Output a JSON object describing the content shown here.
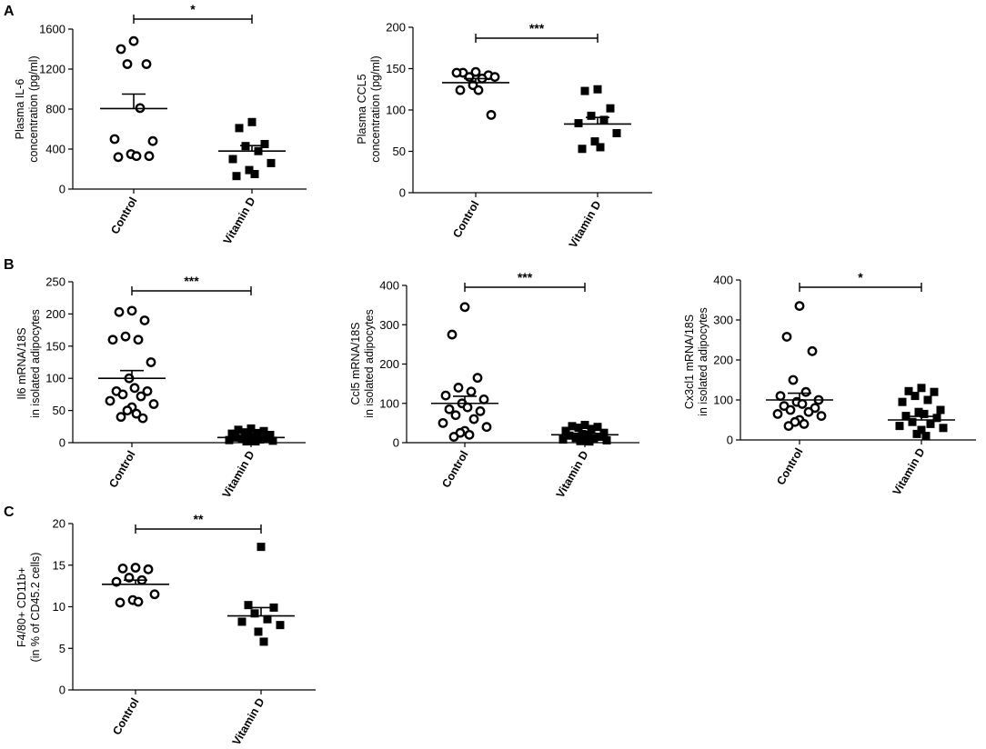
{
  "panel_labels": [
    "A",
    "B",
    "C"
  ],
  "chart_data": [
    {
      "type": "scatter",
      "panel": "A",
      "ylabel": [
        "Plasma IL-6",
        "concentration (pg/ml)"
      ],
      "categories": [
        "Control",
        "Vitamin D"
      ],
      "yticks": [
        0,
        400,
        800,
        1200,
        1600
      ],
      "ylim": [
        0,
        1600
      ],
      "significance": "*",
      "series": [
        {
          "category": "Control",
          "marker": "open-circle",
          "mean": 805,
          "sem": 145,
          "values": [
            1480,
            1400,
            1250,
            1250,
            810,
            500,
            480,
            350,
            330,
            320,
            330
          ]
        },
        {
          "category": "Vitamin D",
          "marker": "filled-square",
          "mean": 380,
          "sem": 55,
          "values": [
            670,
            610,
            450,
            430,
            380,
            300,
            260,
            190,
            150,
            130
          ]
        }
      ]
    },
    {
      "type": "scatter",
      "panel": "A",
      "ylabel": [
        "Plasma CCL5",
        "concentration (pg/ml)"
      ],
      "categories": [
        "Control",
        "Vitamin D"
      ],
      "yticks": [
        0,
        50,
        100,
        150,
        200
      ],
      "ylim": [
        0,
        200
      ],
      "significance": "***",
      "series": [
        {
          "category": "Control",
          "marker": "open-circle",
          "mean": 133,
          "sem": 5,
          "values": [
            146,
            145,
            142,
            140,
            138,
            145,
            140,
            130,
            124,
            124,
            94
          ]
        },
        {
          "category": "Vitamin D",
          "marker": "filled-square",
          "mean": 83,
          "sem": 8,
          "values": [
            125,
            123,
            102,
            93,
            88,
            84,
            72,
            62,
            55,
            53
          ]
        }
      ]
    },
    {
      "type": "scatter",
      "panel": "B",
      "ylabel": [
        "Il6 mRNA/18S",
        "in isolated adipocytes"
      ],
      "categories": [
        "Control",
        "Vitamin D"
      ],
      "yticks": [
        0,
        50,
        100,
        150,
        200,
        250
      ],
      "ylim": [
        0,
        250
      ],
      "significance": "***",
      "series": [
        {
          "category": "Control",
          "marker": "open-circle",
          "mean": 100,
          "sem": 12,
          "values": [
            205,
            203,
            190,
            165,
            160,
            160,
            125,
            100,
            85,
            80,
            80,
            75,
            72,
            65,
            60,
            55,
            50,
            45,
            40,
            38
          ]
        },
        {
          "category": "Vitamin D",
          "marker": "filled-square",
          "mean": 8,
          "sem": 2,
          "values": [
            22,
            20,
            18,
            16,
            15,
            14,
            12,
            10,
            9,
            8,
            7,
            6,
            5,
            4,
            3,
            3,
            2,
            2
          ]
        }
      ]
    },
    {
      "type": "scatter",
      "panel": "B",
      "ylabel": [
        "Ccl5 mRNA/18S",
        "in isolated adipocytes"
      ],
      "categories": [
        "Control",
        "Vitamin D"
      ],
      "yticks": [
        0,
        100,
        200,
        300,
        400
      ],
      "ylim": [
        0,
        400
      ],
      "significance": "***",
      "series": [
        {
          "category": "Control",
          "marker": "open-circle",
          "mean": 100,
          "sem": 18,
          "values": [
            345,
            275,
            165,
            140,
            130,
            120,
            110,
            100,
            90,
            85,
            80,
            70,
            60,
            50,
            40,
            30,
            25,
            20,
            15
          ]
        },
        {
          "category": "Vitamin D",
          "marker": "filled-square",
          "mean": 20,
          "sem": 4,
          "values": [
            45,
            42,
            40,
            38,
            35,
            30,
            25,
            22,
            20,
            18,
            15,
            12,
            10,
            8,
            6,
            5,
            4,
            3
          ]
        }
      ]
    },
    {
      "type": "scatter",
      "panel": "B",
      "ylabel": [
        "Cx3cl1 mRNA/18S",
        "in isolated adipocytes"
      ],
      "categories": [
        "Control",
        "Vitamin D"
      ],
      "yticks": [
        0,
        100,
        200,
        300,
        400
      ],
      "ylim": [
        0,
        400
      ],
      "significance": "*",
      "series": [
        {
          "category": "Control",
          "marker": "open-circle",
          "mean": 100,
          "sem": 17,
          "values": [
            335,
            258,
            222,
            150,
            120,
            110,
            100,
            95,
            90,
            85,
            80,
            75,
            70,
            65,
            60,
            50,
            45,
            40,
            35
          ]
        },
        {
          "category": "Vitamin D",
          "marker": "filled-square",
          "mean": 50,
          "sem": 9,
          "values": [
            130,
            122,
            120,
            110,
            100,
            95,
            75,
            70,
            65,
            60,
            55,
            45,
            40,
            35,
            30,
            25,
            15,
            10
          ]
        }
      ]
    },
    {
      "type": "scatter",
      "panel": "C",
      "ylabel": [
        "F4/80+ CD11b+",
        "(in % of CD45.2 cells)"
      ],
      "categories": [
        "Control",
        "Vitamin D"
      ],
      "yticks": [
        0,
        5,
        10,
        15,
        20
      ],
      "ylim": [
        0,
        20
      ],
      "significance": "**",
      "series": [
        {
          "category": "Control",
          "marker": "open-circle",
          "mean": 12.7,
          "sem": 0.5,
          "values": [
            14.7,
            14.6,
            14.5,
            13.5,
            13.2,
            13.0,
            11.5,
            10.8,
            10.6,
            10.5
          ]
        },
        {
          "category": "Vitamin D",
          "marker": "filled-square",
          "mean": 8.9,
          "sem": 1.0,
          "values": [
            17.2,
            10.2,
            9.9,
            9.2,
            8.5,
            8.2,
            7.8,
            7.0,
            5.8
          ]
        }
      ]
    }
  ]
}
